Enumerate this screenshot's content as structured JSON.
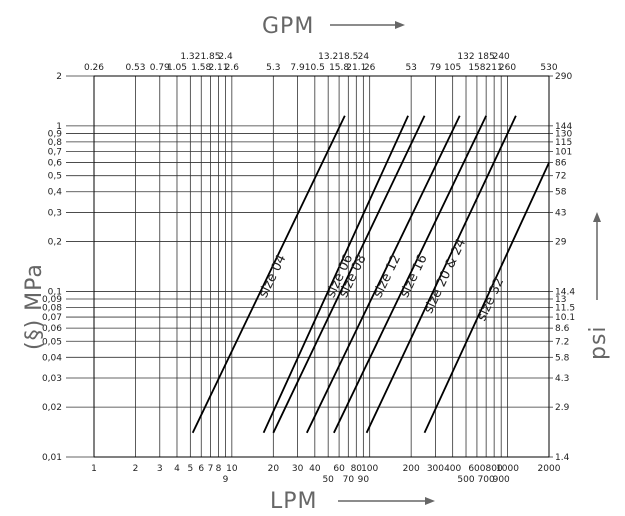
{
  "chart_data": {
    "type": "line",
    "top_axis_label": "GPM",
    "bottom_axis_label": "LPM",
    "left_axis_label": "(§) MPa",
    "right_axis_label": "psi",
    "x_scale": "log",
    "y_scale": "log",
    "xlim": [
      1,
      2000
    ],
    "ylim": [
      0.01,
      2
    ],
    "grid": true,
    "bottom_ticks": [
      {
        "v": 1,
        "label": "1",
        "row": 0
      },
      {
        "v": 2,
        "label": "2",
        "row": 0
      },
      {
        "v": 3,
        "label": "3",
        "row": 0
      },
      {
        "v": 4,
        "label": "4",
        "row": 0
      },
      {
        "v": 5,
        "label": "5",
        "row": 0
      },
      {
        "v": 6,
        "label": "6",
        "row": 0
      },
      {
        "v": 7,
        "label": "7",
        "row": 0
      },
      {
        "v": 8,
        "label": "8",
        "row": 0
      },
      {
        "v": 9,
        "label": "9",
        "row": 1
      },
      {
        "v": 10,
        "label": "10",
        "row": 0
      },
      {
        "v": 20,
        "label": "20",
        "row": 0
      },
      {
        "v": 30,
        "label": "30",
        "row": 0
      },
      {
        "v": 40,
        "label": "40",
        "row": 0
      },
      {
        "v": 50,
        "label": "50",
        "row": 1
      },
      {
        "v": 60,
        "label": "60",
        "row": 0
      },
      {
        "v": 70,
        "label": "70",
        "row": 1
      },
      {
        "v": 80,
        "label": "80",
        "row": 0
      },
      {
        "v": 90,
        "label": "90",
        "row": 1
      },
      {
        "v": 100,
        "label": "100",
        "row": 0
      },
      {
        "v": 200,
        "label": "200",
        "row": 0
      },
      {
        "v": 300,
        "label": "300",
        "row": 0
      },
      {
        "v": 400,
        "label": "400",
        "row": 0
      },
      {
        "v": 500,
        "label": "500",
        "row": 1
      },
      {
        "v": 600,
        "label": "600",
        "row": 0
      },
      {
        "v": 700,
        "label": "700",
        "row": 1
      },
      {
        "v": 800,
        "label": "800",
        "row": 0
      },
      {
        "v": 900,
        "label": "900",
        "row": 1
      },
      {
        "v": 1000,
        "label": "1000",
        "row": 0
      },
      {
        "v": 2000,
        "label": "2000",
        "row": 0
      }
    ],
    "top_ticks": [
      {
        "v": 1,
        "label": "0.26",
        "row": 0
      },
      {
        "v": 2,
        "label": "0.53",
        "row": 0
      },
      {
        "v": 3,
        "label": "0.79",
        "row": 0
      },
      {
        "v": 4,
        "label": "1.05",
        "row": 0
      },
      {
        "v": 5,
        "label": "1.32",
        "row": 1
      },
      {
        "v": 6,
        "label": "1.58",
        "row": 0
      },
      {
        "v": 7,
        "label": "1.85",
        "row": 1
      },
      {
        "v": 8,
        "label": "2.11",
        "row": 0
      },
      {
        "v": 9,
        "label": "2.4",
        "row": 1
      },
      {
        "v": 10,
        "label": "2.6",
        "row": 0
      },
      {
        "v": 20,
        "label": "5.3",
        "row": 0
      },
      {
        "v": 30,
        "label": "7.9",
        "row": 0
      },
      {
        "v": 40,
        "label": "10.5",
        "row": 0
      },
      {
        "v": 50,
        "label": "13.2",
        "row": 1
      },
      {
        "v": 60,
        "label": "15.8",
        "row": 0
      },
      {
        "v": 70,
        "label": "18.5",
        "row": 1
      },
      {
        "v": 80,
        "label": "21.1",
        "row": 0
      },
      {
        "v": 90,
        "label": "24",
        "row": 1
      },
      {
        "v": 100,
        "label": "26",
        "row": 0
      },
      {
        "v": 200,
        "label": "53",
        "row": 0
      },
      {
        "v": 300,
        "label": "79",
        "row": 0
      },
      {
        "v": 400,
        "label": "105",
        "row": 0
      },
      {
        "v": 500,
        "label": "132",
        "row": 1
      },
      {
        "v": 600,
        "label": "158",
        "row": 0
      },
      {
        "v": 700,
        "label": "185",
        "row": 1
      },
      {
        "v": 800,
        "label": "211",
        "row": 0
      },
      {
        "v": 900,
        "label": "240",
        "row": 1
      },
      {
        "v": 1000,
        "label": "260",
        "row": 0
      },
      {
        "v": 2000,
        "label": "530",
        "row": 0
      }
    ],
    "left_ticks": [
      {
        "v": 0.01,
        "label": "0,01"
      },
      {
        "v": 0.02,
        "label": "0,02"
      },
      {
        "v": 0.03,
        "label": "0,03"
      },
      {
        "v": 0.04,
        "label": "0,04"
      },
      {
        "v": 0.05,
        "label": "0,05"
      },
      {
        "v": 0.06,
        "label": "0,06"
      },
      {
        "v": 0.07,
        "label": "0,07"
      },
      {
        "v": 0.08,
        "label": "0,08"
      },
      {
        "v": 0.09,
        "label": "0,09"
      },
      {
        "v": 0.1,
        "label": "0,1"
      },
      {
        "v": 0.2,
        "label": "0,2"
      },
      {
        "v": 0.3,
        "label": "0,3"
      },
      {
        "v": 0.4,
        "label": "0,4"
      },
      {
        "v": 0.5,
        "label": "0,5"
      },
      {
        "v": 0.6,
        "label": "0,6"
      },
      {
        "v": 0.7,
        "label": "0,7"
      },
      {
        "v": 0.8,
        "label": "0,8"
      },
      {
        "v": 0.9,
        "label": "0,9"
      },
      {
        "v": 1,
        "label": "1"
      },
      {
        "v": 2,
        "label": "2"
      }
    ],
    "right_ticks": [
      {
        "v": 0.01,
        "label": "1.4"
      },
      {
        "v": 0.02,
        "label": "2.9"
      },
      {
        "v": 0.03,
        "label": "4.3"
      },
      {
        "v": 0.04,
        "label": "5.8"
      },
      {
        "v": 0.05,
        "label": "7.2"
      },
      {
        "v": 0.06,
        "label": "8.6"
      },
      {
        "v": 0.07,
        "label": "10.1"
      },
      {
        "v": 0.08,
        "label": "11.5"
      },
      {
        "v": 0.09,
        "label": "13"
      },
      {
        "v": 0.1,
        "label": "14.4"
      },
      {
        "v": 0.2,
        "label": "29"
      },
      {
        "v": 0.3,
        "label": "43"
      },
      {
        "v": 0.4,
        "label": "58"
      },
      {
        "v": 0.5,
        "label": "72"
      },
      {
        "v": 0.6,
        "label": "86"
      },
      {
        "v": 0.7,
        "label": "101"
      },
      {
        "v": 0.8,
        "label": "115"
      },
      {
        "v": 0.9,
        "label": "130"
      },
      {
        "v": 1,
        "label": "144"
      },
      {
        "v": 2,
        "label": "290"
      }
    ],
    "series": [
      {
        "name": "size 04",
        "x": [
          5.2,
          66
        ],
        "y": [
          0.014,
          1.15
        ]
      },
      {
        "name": "size 06",
        "x": [
          17,
          190
        ],
        "y": [
          0.014,
          1.15
        ]
      },
      {
        "name": "size 08",
        "x": [
          20,
          250
        ],
        "y": [
          0.014,
          1.15
        ]
      },
      {
        "name": "size 12",
        "x": [
          35,
          450
        ],
        "y": [
          0.014,
          1.15
        ]
      },
      {
        "name": "size 16",
        "x": [
          55,
          700
        ],
        "y": [
          0.014,
          1.15
        ]
      },
      {
        "name": "size 20 & 24",
        "x": [
          95,
          1150
        ],
        "y": [
          0.014,
          1.15
        ]
      },
      {
        "name": "size 32",
        "x": [
          250,
          2000
        ],
        "y": [
          0.014,
          0.6
        ]
      }
    ],
    "colors": {
      "line": "#000000",
      "grid": "#333333",
      "title": "#666666"
    }
  }
}
